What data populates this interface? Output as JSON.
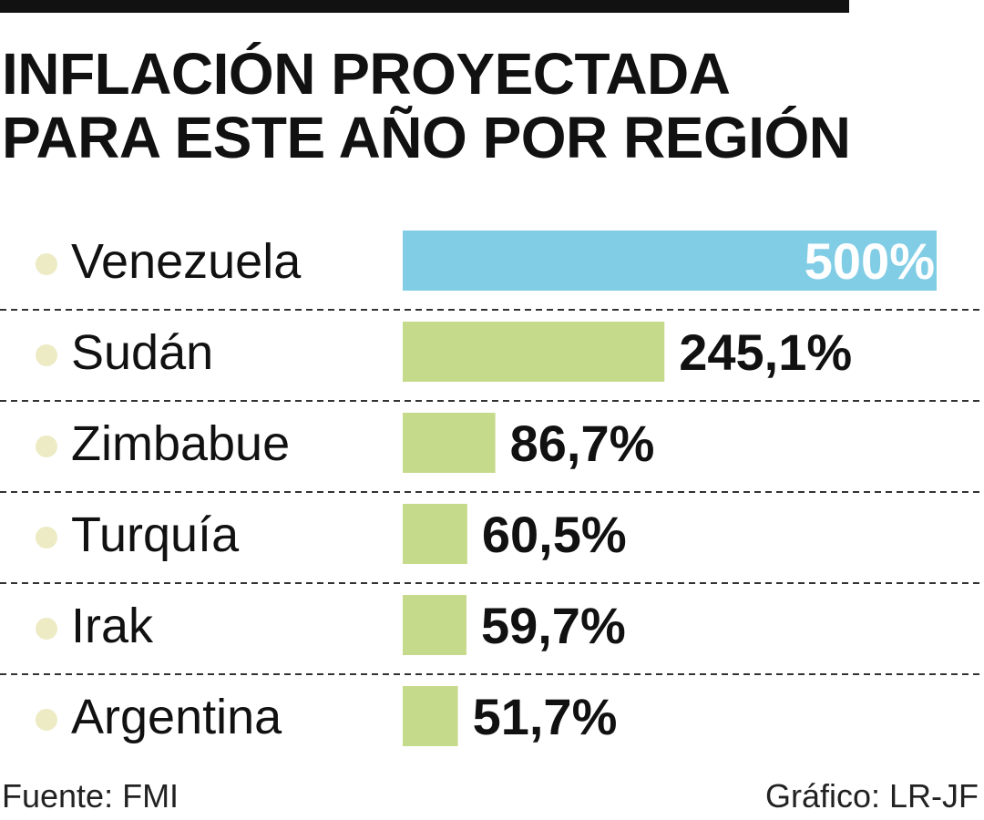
{
  "header": {
    "title_line1": "INFLACIÓN PROYECTADA",
    "title_line2": "PARA ESTE AÑO POR REGIÓN"
  },
  "footer": {
    "source": "Fuente: FMI",
    "credit": "Gráfico: LR-JF"
  },
  "colors": {
    "highlight_bar": "#82cde6",
    "bar": "#c6da8c",
    "bullet": "#ecebc4",
    "text": "#111111",
    "divider": "#333333"
  },
  "chart_data": {
    "type": "bar",
    "orientation": "horizontal",
    "categories": [
      "Venezuela",
      "Sudán",
      "Zimbabue",
      "Turquía",
      "Irak",
      "Argentina"
    ],
    "values": [
      500,
      245.1,
      86.7,
      60.5,
      59.7,
      51.7
    ],
    "value_labels": [
      "500%",
      "245,1%",
      "86,7%",
      "60,5%",
      "59,7%",
      "51,7%"
    ],
    "highlight_index": 0,
    "xlim": [
      0,
      500
    ]
  }
}
